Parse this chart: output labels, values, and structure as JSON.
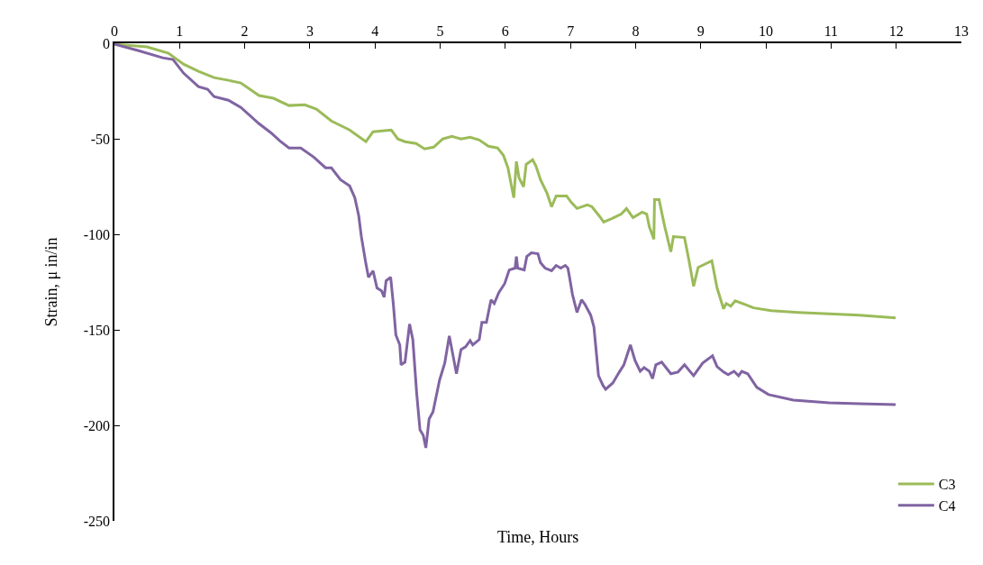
{
  "chart_data": {
    "type": "line",
    "xlabel": "Time, Hours",
    "ylabel": "Strain, μ in/in",
    "xlim": [
      0,
      13
    ],
    "xticks": [
      0,
      1,
      2,
      3,
      4,
      5,
      6,
      7,
      8,
      9,
      10,
      11,
      12,
      13
    ],
    "ylim": [
      -250,
      0
    ],
    "yticks": [
      -250,
      -200,
      -150,
      -100,
      -50,
      0
    ],
    "legend": "bottom right",
    "marker": "none",
    "line_style": "solid",
    "series": [
      {
        "name": "C3",
        "color": "#9bbb59",
        "x": [
          0,
          0.5,
          0.83,
          1.06,
          1.29,
          1.53,
          1.75,
          1.94,
          2.22,
          2.44,
          2.68,
          2.92,
          3.1,
          3.33,
          3.61,
          3.86,
          3.97,
          4.25,
          4.35,
          4.46,
          4.63,
          4.76,
          4.9,
          5.04,
          5.18,
          5.32,
          5.46,
          5.6,
          5.74,
          5.88,
          5.97,
          6.04,
          6.13,
          6.17,
          6.21,
          6.28,
          6.32,
          6.42,
          6.47,
          6.54,
          6.64,
          6.71,
          6.78,
          6.94,
          7.01,
          7.1,
          7.26,
          7.33,
          7.44,
          7.51,
          7.64,
          7.78,
          7.86,
          7.96,
          8.1,
          8.17,
          8.21,
          8.28,
          8.29,
          8.36,
          8.44,
          8.54,
          8.58,
          8.75,
          8.82,
          8.89,
          8.96,
          9.17,
          9.25,
          9.35,
          9.39,
          9.46,
          9.53,
          9.67,
          9.81,
          10.08,
          10.5,
          11.43,
          11.99
        ],
        "values": [
          -0.5,
          -1.9,
          -5.2,
          -10.9,
          -14.7,
          -18,
          -19.4,
          -20.8,
          -27.4,
          -28.8,
          -32.6,
          -32.2,
          -34.5,
          -40.7,
          -45.4,
          -51.5,
          -46.3,
          -45.4,
          -50.1,
          -51.5,
          -52.5,
          -55.3,
          -54.4,
          -50.1,
          -48.7,
          -50.1,
          -49.2,
          -50.6,
          -53.9,
          -54.8,
          -58.6,
          -65.2,
          -80.9,
          -61.9,
          -70.4,
          -75.2,
          -63.4,
          -61,
          -64.3,
          -71.4,
          -78.5,
          -85.6,
          -79.9,
          -79.9,
          -83.2,
          -86.5,
          -84.6,
          -85.6,
          -90.3,
          -93.6,
          -91.7,
          -89.4,
          -86.5,
          -91.3,
          -88.4,
          -89.4,
          -96,
          -102.6,
          -81.8,
          -81.8,
          -95,
          -109.2,
          -101.2,
          -101.7,
          -113.9,
          -127.2,
          -117.3,
          -113.9,
          -128.1,
          -139,
          -136.2,
          -137.6,
          -134.8,
          -136.6,
          -138.5,
          -140,
          -140.9,
          -142.3,
          -143.7
        ]
      },
      {
        "name": "C4",
        "color": "#8064a2",
        "x": [
          0,
          0.36,
          0.74,
          0.9,
          1.06,
          1.29,
          1.43,
          1.53,
          1.75,
          1.94,
          2.22,
          2.4,
          2.54,
          2.68,
          2.86,
          3.06,
          3.24,
          3.33,
          3.47,
          3.61,
          3.69,
          3.75,
          3.79,
          3.86,
          3.9,
          3.97,
          4.03,
          4.1,
          4.14,
          4.17,
          4.24,
          4.28,
          4.32,
          4.38,
          4.4,
          4.46,
          4.53,
          4.58,
          4.64,
          4.69,
          4.74,
          4.78,
          4.83,
          4.89,
          4.93,
          4.99,
          5.07,
          5.14,
          5.25,
          5.32,
          5.39,
          5.46,
          5.5,
          5.6,
          5.64,
          5.71,
          5.78,
          5.83,
          5.9,
          5.99,
          6.06,
          6.15,
          6.17,
          6.19,
          6.29,
          6.33,
          6.4,
          6.5,
          6.54,
          6.61,
          6.71,
          6.78,
          6.85,
          6.92,
          6.96,
          6.99,
          7.03,
          7.1,
          7.17,
          7.22,
          7.31,
          7.36,
          7.43,
          7.5,
          7.54,
          7.65,
          7.75,
          7.82,
          7.92,
          7.99,
          8.07,
          8.13,
          8.21,
          8.26,
          8.31,
          8.4,
          8.54,
          8.65,
          8.75,
          8.89,
          9.03,
          9.18,
          9.25,
          9.35,
          9.42,
          9.51,
          9.58,
          9.63,
          9.72,
          9.86,
          10.04,
          10.42,
          10.97,
          11.43,
          11.99
        ],
        "values": [
          -0.5,
          -3.8,
          -7.6,
          -8.5,
          -15.6,
          -22.7,
          -24.1,
          -27.9,
          -29.8,
          -33.6,
          -42.1,
          -46.8,
          -51.1,
          -54.8,
          -54.8,
          -59.6,
          -65.2,
          -65.2,
          -71.4,
          -74.7,
          -80.9,
          -90.3,
          -101.2,
          -115.4,
          -122.5,
          -119.1,
          -128.1,
          -129.6,
          -132.9,
          -124.3,
          -122.5,
          -136.2,
          -152.7,
          -157.9,
          -168.3,
          -166.9,
          -147,
          -155.1,
          -183.5,
          -202.4,
          -205.2,
          -211.8,
          -196.7,
          -192.9,
          -186.3,
          -176.4,
          -167.4,
          -153.2,
          -173,
          -160.3,
          -158.9,
          -155.6,
          -157.9,
          -155.1,
          -146.1,
          -146.1,
          -134.3,
          -136.2,
          -130.5,
          -125.8,
          -118.7,
          -117.7,
          -111.6,
          -117.7,
          -118.7,
          -111.6,
          -109.7,
          -110.2,
          -114.9,
          -117.7,
          -119.1,
          -116.3,
          -117.7,
          -116.3,
          -117.7,
          -123.4,
          -131.4,
          -140.9,
          -134.3,
          -136.6,
          -142.3,
          -148.5,
          -174,
          -179.2,
          -181.1,
          -177.8,
          -172.1,
          -168.3,
          -157.9,
          -166,
          -171.7,
          -169.8,
          -171.7,
          -175.5,
          -168.3,
          -166.9,
          -173,
          -172.1,
          -168.3,
          -174,
          -167.4,
          -163.6,
          -169.3,
          -172.1,
          -173.5,
          -171.7,
          -174,
          -171.7,
          -173,
          -180.1,
          -183.9,
          -186.8,
          -188.2,
          -188.7,
          -189.1
        ]
      }
    ]
  }
}
